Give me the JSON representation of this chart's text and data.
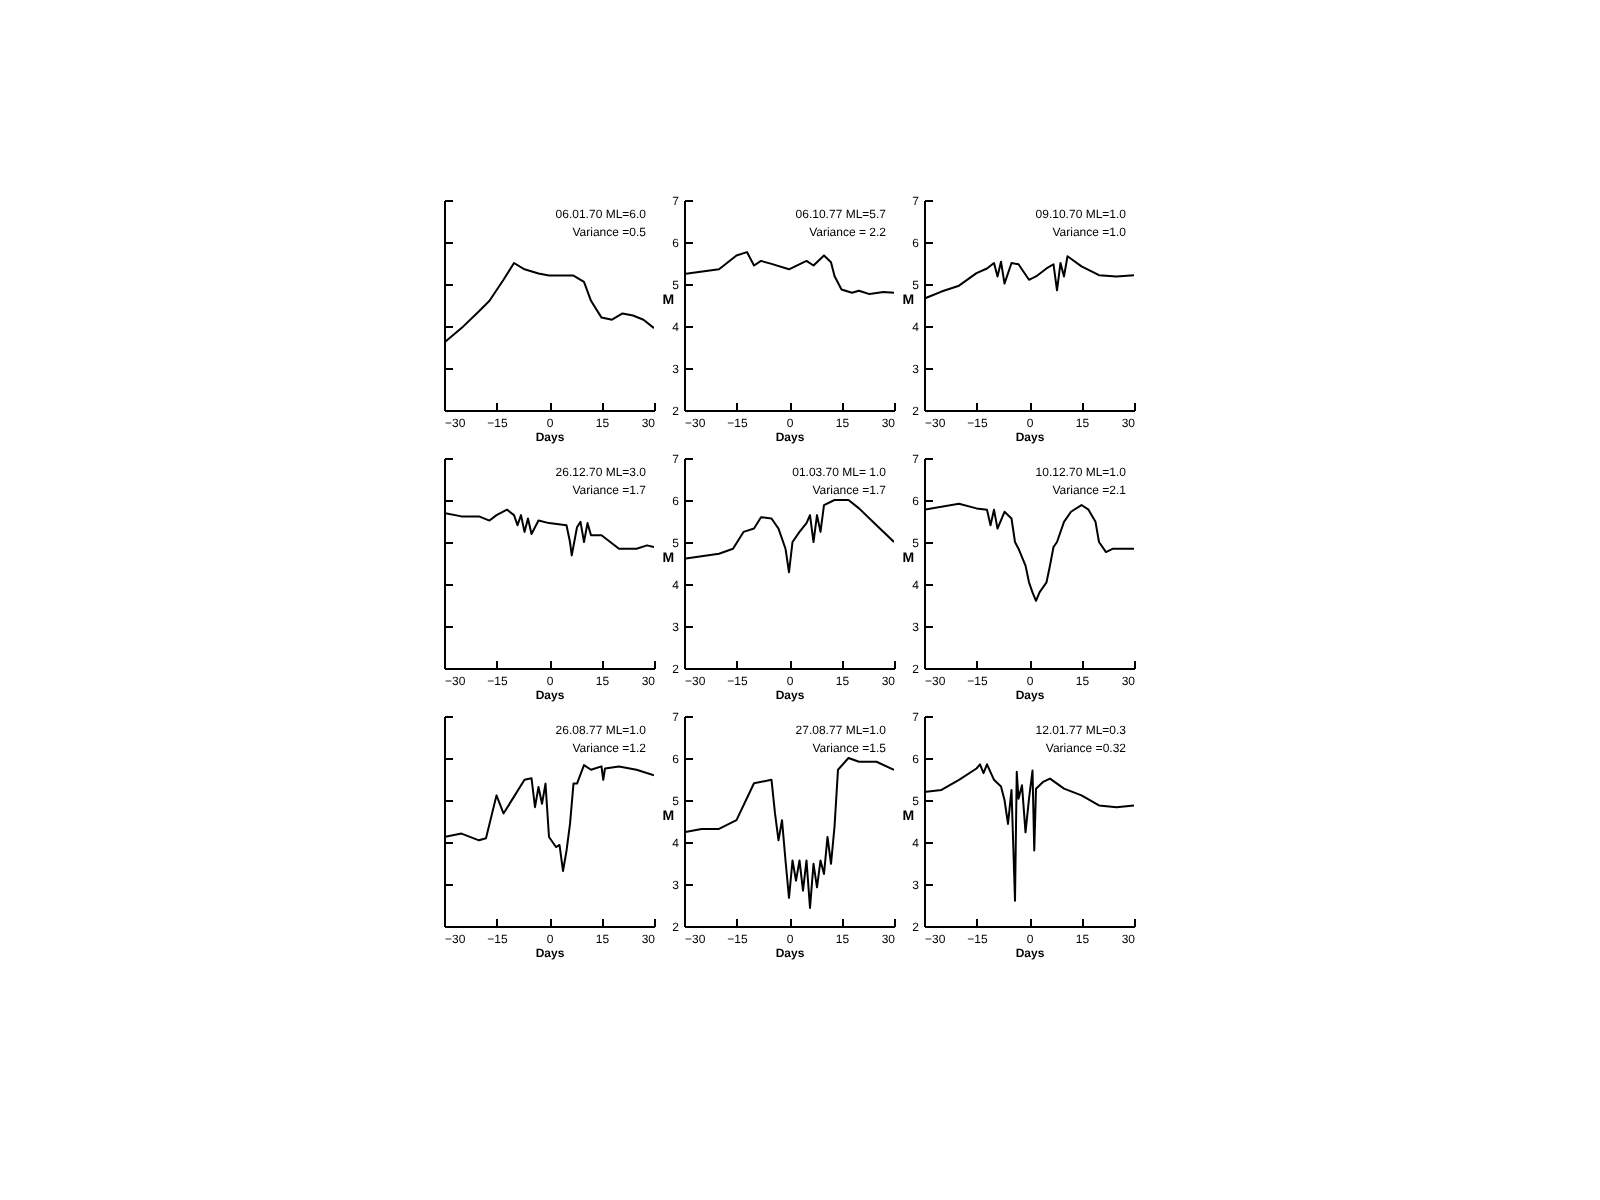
{
  "chart_data": [
    {
      "type": "line",
      "color": "#000000",
      "xlabel": "Days",
      "x": [
        -30,
        -25,
        -20,
        -17,
        -13,
        -10,
        -7,
        -3,
        0,
        5,
        7,
        10,
        12,
        15,
        18,
        21,
        24,
        27,
        30
      ],
      "values": [
        3.6,
        3.95,
        4.35,
        4.6,
        5.1,
        5.5,
        5.35,
        5.25,
        5.2,
        5.2,
        5.2,
        5.05,
        4.6,
        4.2,
        4.15,
        4.3,
        4.25,
        4.15,
        3.95
      ],
      "xlim": [
        -30,
        30
      ],
      "ylim": [
        2,
        7
      ],
      "xticks": [
        -30,
        -15,
        0,
        15,
        30
      ],
      "yticks": [
        2,
        3,
        4,
        5,
        6,
        7
      ],
      "tick_labels": "x",
      "grid": false,
      "annotations": [
        "06.01.70  ML=6.0",
        "Variance =0.5"
      ]
    },
    {
      "type": "line",
      "color": "#000000",
      "xlabel": "Days",
      "ylabel": "M",
      "x": [
        -30,
        -20,
        -15,
        -12,
        -10,
        -8,
        -5,
        0,
        5,
        7,
        10,
        12,
        13,
        15,
        18,
        20,
        23,
        27,
        30
      ],
      "values": [
        5.24,
        5.35,
        5.68,
        5.76,
        5.44,
        5.55,
        5.48,
        5.35,
        5.55,
        5.44,
        5.68,
        5.52,
        5.19,
        4.87,
        4.79,
        4.84,
        4.76,
        4.81,
        4.79
      ],
      "xlim": [
        -30,
        30
      ],
      "ylim": [
        2,
        7
      ],
      "xticks": [
        -30,
        -15,
        0,
        15,
        30
      ],
      "yticks": [
        2,
        3,
        4,
        5,
        6,
        7
      ],
      "grid": false,
      "annotations": [
        "06.10.77  ML=5.7",
        "Variance = 2.2"
      ]
    },
    {
      "type": "line",
      "color": "#000000",
      "xlabel": "Days",
      "ylabel": "M",
      "x": [
        -30,
        -25,
        -20,
        -15,
        -12,
        -10,
        -9,
        -8,
        -7,
        -5,
        -3,
        0,
        2,
        5,
        7,
        8,
        9,
        10,
        11,
        15,
        20,
        25,
        30
      ],
      "values": [
        4.65,
        4.82,
        4.96,
        5.26,
        5.37,
        5.5,
        5.18,
        5.53,
        5.01,
        5.5,
        5.47,
        5.1,
        5.18,
        5.37,
        5.47,
        4.85,
        5.5,
        5.18,
        5.66,
        5.42,
        5.21,
        5.18,
        5.21
      ],
      "xlim": [
        -30,
        30
      ],
      "ylim": [
        2,
        7
      ],
      "xticks": [
        -30,
        -15,
        0,
        15,
        30
      ],
      "yticks": [
        2,
        3,
        4,
        5,
        6,
        7
      ],
      "grid": false,
      "annotations": [
        "09.10.70  ML=1.0",
        "Variance =1.0"
      ]
    },
    {
      "type": "line",
      "color": "#000000",
      "xlabel": "Days",
      "x": [
        -30,
        -25,
        -20,
        -17,
        -15,
        -12,
        -10,
        -9,
        -8,
        -7,
        -6,
        -5,
        -3,
        0,
        5,
        6,
        6.5,
        8,
        9,
        10,
        11,
        12,
        15,
        20,
        25,
        28,
        30
      ],
      "values": [
        5.69,
        5.61,
        5.61,
        5.51,
        5.64,
        5.77,
        5.64,
        5.4,
        5.64,
        5.24,
        5.56,
        5.19,
        5.51,
        5.45,
        5.4,
        5.0,
        4.68,
        5.35,
        5.48,
        5.0,
        5.45,
        5.16,
        5.16,
        4.84,
        4.84,
        4.92,
        4.88
      ],
      "xlim": [
        -30,
        30
      ],
      "ylim": [
        2,
        7
      ],
      "xticks": [
        -30,
        -15,
        0,
        15,
        30
      ],
      "yticks": [
        2,
        3,
        4,
        5,
        6,
        7
      ],
      "tick_labels": "x",
      "grid": false,
      "annotations": [
        "26.12.70  ML=3.0",
        "Variance =1.7"
      ]
    },
    {
      "type": "line",
      "color": "#000000",
      "xlabel": "Days",
      "ylabel": "M",
      "x": [
        -30,
        -20,
        -16,
        -13,
        -10,
        -8,
        -5,
        -3,
        -1,
        0,
        1,
        3,
        5,
        6,
        7,
        8,
        9,
        10,
        13,
        17,
        20,
        25,
        30
      ],
      "values": [
        4.6,
        4.72,
        4.84,
        5.24,
        5.32,
        5.59,
        5.56,
        5.32,
        4.84,
        4.28,
        5.0,
        5.24,
        5.45,
        5.64,
        5.0,
        5.64,
        5.24,
        5.88,
        6.0,
        6.0,
        5.8,
        5.4,
        5.0
      ],
      "xlim": [
        -30,
        30
      ],
      "ylim": [
        2,
        7
      ],
      "xticks": [
        -30,
        -15,
        0,
        15,
        30
      ],
      "yticks": [
        2,
        3,
        4,
        5,
        6,
        7
      ],
      "grid": false,
      "annotations": [
        "01.03.70  ML= 1.0",
        "Variance =1.7"
      ]
    },
    {
      "type": "line",
      "color": "#000000",
      "xlabel": "Days",
      "ylabel": "M",
      "x": [
        -30,
        -20,
        -15,
        -12,
        -11,
        -10,
        -9,
        -7,
        -5,
        -4,
        -3,
        -1,
        0,
        1,
        2,
        3,
        5,
        6,
        7,
        8,
        10,
        12,
        15,
        17,
        19,
        20,
        22,
        24,
        30
      ],
      "values": [
        5.77,
        5.91,
        5.8,
        5.77,
        5.4,
        5.77,
        5.32,
        5.72,
        5.56,
        5.0,
        4.84,
        4.44,
        4.04,
        3.8,
        3.6,
        3.8,
        4.04,
        4.44,
        4.88,
        5.0,
        5.48,
        5.72,
        5.88,
        5.77,
        5.48,
        5.0,
        4.76,
        4.84,
        4.84
      ],
      "xlim": [
        -30,
        30
      ],
      "ylim": [
        2,
        7
      ],
      "xticks": [
        -30,
        -15,
        0,
        15,
        30
      ],
      "yticks": [
        2,
        3,
        4,
        5,
        6,
        7
      ],
      "grid": false,
      "annotations": [
        "10.12.70  ML=1.0",
        "Variance =2.1"
      ]
    },
    {
      "type": "line",
      "color": "#000000",
      "xlabel": "Days",
      "x": [
        -30,
        -25,
        -20,
        -18,
        -15,
        -13,
        -10,
        -7,
        -5,
        -4,
        -3,
        -2,
        -1,
        0,
        2,
        3,
        4,
        5,
        6,
        7,
        8,
        10,
        12,
        15,
        15.5,
        16,
        20,
        25,
        30
      ],
      "values": [
        4.12,
        4.2,
        4.04,
        4.09,
        5.11,
        4.68,
        5.08,
        5.48,
        5.52,
        4.83,
        5.31,
        4.91,
        5.39,
        4.12,
        3.88,
        3.93,
        3.31,
        3.79,
        4.43,
        5.39,
        5.39,
        5.83,
        5.72,
        5.8,
        5.48,
        5.75,
        5.8,
        5.72,
        5.59
      ],
      "xlim": [
        -30,
        30
      ],
      "ylim": [
        2,
        7
      ],
      "xticks": [
        -30,
        -15,
        0,
        15,
        30
      ],
      "yticks": [
        2,
        3,
        4,
        5,
        6,
        7
      ],
      "tick_labels": "x",
      "grid": false,
      "annotations": [
        "26.08.77  ML=1.0",
        "Variance =1.2"
      ]
    },
    {
      "type": "line",
      "color": "#000000",
      "xlabel": "Days",
      "ylabel": "M",
      "x": [
        -30,
        -25,
        -20,
        -15,
        -10,
        -5,
        -4,
        -3,
        -2,
        -1,
        0,
        1,
        2,
        3,
        4,
        5,
        6,
        7,
        8,
        9,
        10,
        11,
        12,
        13,
        14,
        17,
        20,
        25,
        30
      ],
      "values": [
        4.23,
        4.31,
        4.31,
        4.52,
        5.4,
        5.48,
        4.68,
        4.04,
        4.52,
        3.56,
        2.67,
        3.56,
        3.08,
        3.56,
        2.84,
        3.56,
        2.43,
        3.48,
        2.92,
        3.56,
        3.24,
        4.12,
        3.48,
        4.36,
        5.72,
        6.0,
        5.91,
        5.91,
        5.72
      ],
      "xlim": [
        -30,
        30
      ],
      "ylim": [
        2,
        7
      ],
      "xticks": [
        -30,
        -15,
        0,
        15,
        30
      ],
      "yticks": [
        2,
        3,
        4,
        5,
        6,
        7
      ],
      "grid": false,
      "annotations": [
        "27.08.77  ML=1.0",
        "Variance =1.5"
      ]
    },
    {
      "type": "line",
      "color": "#000000",
      "xlabel": "Days",
      "ylabel": "M",
      "x": [
        -30,
        -25,
        -20,
        -15,
        -14,
        -13,
        -12,
        -10,
        -8,
        -7,
        -6,
        -5,
        -4,
        -3.5,
        -3,
        -2,
        -1,
        0,
        1,
        1.5,
        2,
        4,
        6,
        10,
        15,
        20,
        25,
        30
      ],
      "values": [
        5.19,
        5.24,
        5.48,
        5.75,
        5.85,
        5.64,
        5.85,
        5.48,
        5.32,
        5.0,
        4.43,
        5.24,
        2.6,
        5.67,
        5.03,
        5.35,
        4.23,
        5.03,
        5.7,
        3.8,
        5.27,
        5.43,
        5.51,
        5.27,
        5.11,
        4.87,
        4.83,
        4.87
      ],
      "xlim": [
        -30,
        30
      ],
      "ylim": [
        2,
        7
      ],
      "xticks": [
        -30,
        -15,
        0,
        15,
        30
      ],
      "yticks": [
        2,
        3,
        4,
        5,
        6,
        7
      ],
      "grid": false,
      "annotations": [
        "12.01.77  ML=0.3",
        "Variance =0.32"
      ]
    }
  ]
}
